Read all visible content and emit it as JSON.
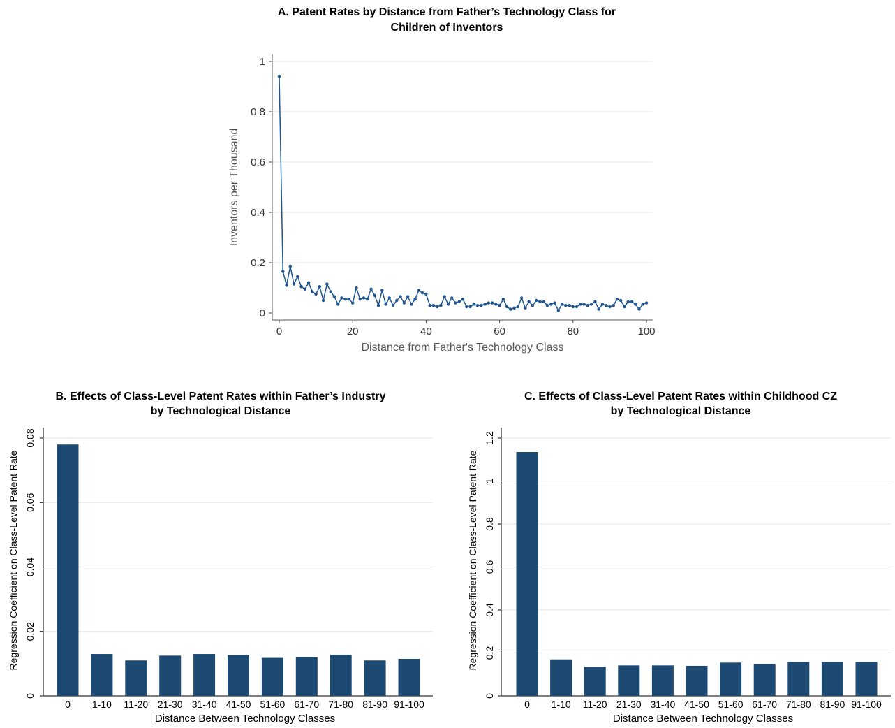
{
  "chart_data": [
    {
      "id": "A",
      "type": "line",
      "title_lines": [
        "A. Patent Rates by Distance from Father’s Technology Class for",
        "Children of Inventors"
      ],
      "xlabel": "Distance from Father's Technology Class",
      "ylabel": "Inventors per Thousand",
      "xlim": [
        0,
        100
      ],
      "ylim": [
        0,
        1
      ],
      "xticks": [
        0,
        20,
        40,
        60,
        80,
        100
      ],
      "yticks": [
        0,
        0.2,
        0.4,
        0.6,
        0.8,
        1
      ],
      "grid": true,
      "color": "#1f5591",
      "y": [
        0.94,
        0.165,
        0.11,
        0.185,
        0.115,
        0.145,
        0.105,
        0.095,
        0.12,
        0.085,
        0.075,
        0.105,
        0.05,
        0.115,
        0.085,
        0.065,
        0.035,
        0.06,
        0.055,
        0.055,
        0.04,
        0.1,
        0.055,
        0.06,
        0.055,
        0.095,
        0.07,
        0.03,
        0.09,
        0.035,
        0.06,
        0.03,
        0.05,
        0.065,
        0.04,
        0.065,
        0.035,
        0.055,
        0.09,
        0.08,
        0.075,
        0.03,
        0.03,
        0.025,
        0.03,
        0.065,
        0.035,
        0.06,
        0.04,
        0.045,
        0.055,
        0.025,
        0.025,
        0.035,
        0.03,
        0.03,
        0.035,
        0.04,
        0.04,
        0.035,
        0.03,
        0.055,
        0.025,
        0.015,
        0.02,
        0.025,
        0.06,
        0.02,
        0.045,
        0.03,
        0.05,
        0.045,
        0.045,
        0.03,
        0.035,
        0.04,
        0.01,
        0.035,
        0.03,
        0.03,
        0.025,
        0.025,
        0.035,
        0.035,
        0.03,
        0.035,
        0.045,
        0.015,
        0.035,
        0.03,
        0.025,
        0.03,
        0.055,
        0.05,
        0.025,
        0.045,
        0.045,
        0.035,
        0.015,
        0.035,
        0.04
      ]
    },
    {
      "id": "B",
      "type": "bar",
      "title_lines": [
        "B. Effects of Class-Level Patent Rates within Father’s Industry",
        "by Technological Distance"
      ],
      "xlabel": "Distance Between Technology Classes",
      "ylabel": "Regression Coefficient on Class-Level Patent Rate",
      "categories": [
        "0",
        "1-10",
        "11-20",
        "21-30",
        "31-40",
        "41-50",
        "51-60",
        "61-70",
        "71-80",
        "81-90",
        "91-100"
      ],
      "values": [
        0.078,
        0.013,
        0.011,
        0.0125,
        0.013,
        0.0127,
        0.0118,
        0.012,
        0.0128,
        0.011,
        0.0115
      ],
      "ylim": [
        0,
        0.08
      ],
      "yticks": [
        0,
        0.02,
        0.04,
        0.06,
        0.08
      ],
      "grid": true,
      "color": "#1c4a73"
    },
    {
      "id": "C",
      "type": "bar",
      "title_lines": [
        "C. Effects of Class-Level Patent Rates within Childhood CZ",
        "by Technological Distance"
      ],
      "xlabel": "Distance Between Technology Classes",
      "ylabel": "Regression Coefficient on Class-Level Patent Rate",
      "categories": [
        "0",
        "1-10",
        "11-20",
        "21-30",
        "31-40",
        "41-50",
        "51-60",
        "61-70",
        "71-80",
        "81-90",
        "91-100"
      ],
      "values": [
        1.135,
        0.17,
        0.135,
        0.142,
        0.142,
        0.14,
        0.155,
        0.148,
        0.158,
        0.158,
        0.158
      ],
      "ylim": [
        0,
        1.2
      ],
      "yticks": [
        0,
        0.2,
        0.4,
        0.6,
        0.8,
        1,
        1.2
      ],
      "grid": true,
      "color": "#1c4a73"
    }
  ]
}
